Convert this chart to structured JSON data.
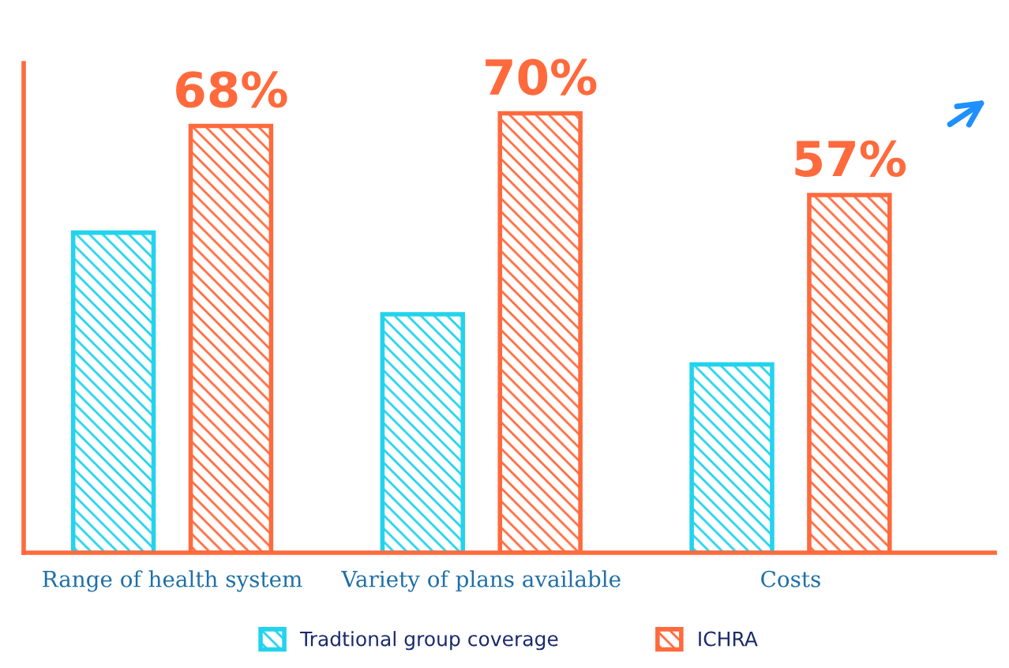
{
  "chart_data": {
    "type": "bar",
    "ylim": [
      0,
      78
    ],
    "categories": [
      "Range of health system",
      "Variety of plans available",
      "Costs"
    ],
    "series": [
      {
        "name": "Tradtional group coverage",
        "color": "#22d3ee",
        "values": [
          51,
          38,
          30
        ]
      },
      {
        "name": "ICHRA",
        "color": "#ff6a3d",
        "values": [
          68,
          70,
          57
        ],
        "value_labels": [
          "68%",
          "70%",
          "57%"
        ]
      }
    ],
    "legend": "bottom",
    "grid": false
  }
}
